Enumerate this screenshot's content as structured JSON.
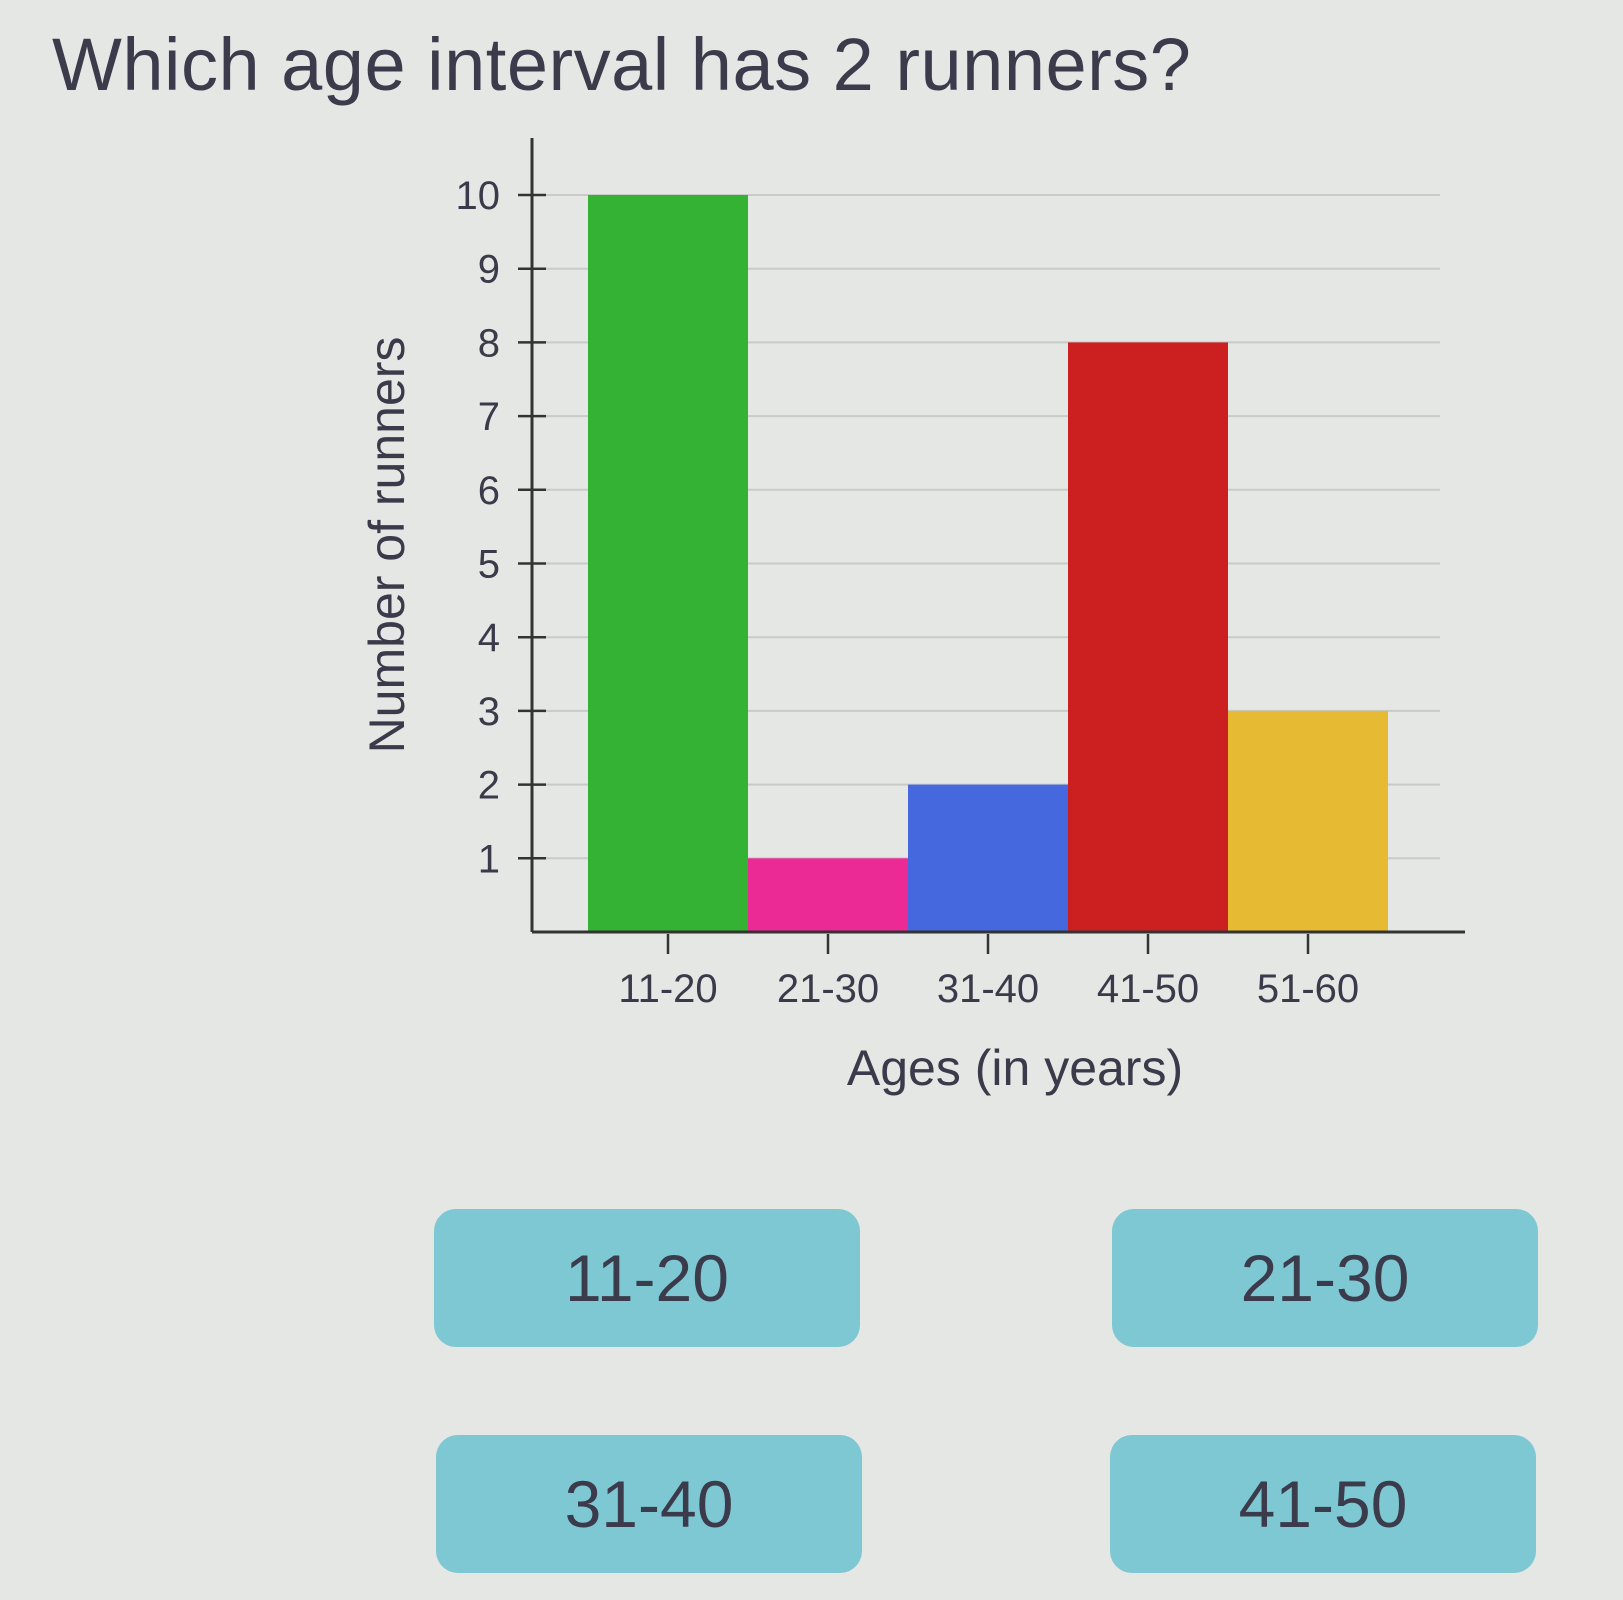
{
  "question": "Which age interval has 2 runners?",
  "chart_data": {
    "type": "bar",
    "categories": [
      "11-20",
      "21-30",
      "31-40",
      "41-50",
      "51-60"
    ],
    "values": [
      10,
      1,
      2,
      8,
      3
    ],
    "colors": [
      "#33b233",
      "#ec2a96",
      "#4668de",
      "#cc2020",
      "#e6bb33"
    ],
    "xlabel": "Ages (in years)",
    "ylabel": "Number of runners",
    "ylim": [
      0,
      10
    ],
    "yticks": [
      "1",
      "2",
      "3",
      "4",
      "5",
      "6",
      "7",
      "8",
      "9",
      "10"
    ],
    "grid": true
  },
  "answers": [
    {
      "label": "11-20"
    },
    {
      "label": "21-30"
    },
    {
      "label": "31-40"
    },
    {
      "label": "41-50"
    }
  ],
  "theme": {
    "answer_bg": "#7ec8d4",
    "page_bg": "#e4e7e4"
  }
}
